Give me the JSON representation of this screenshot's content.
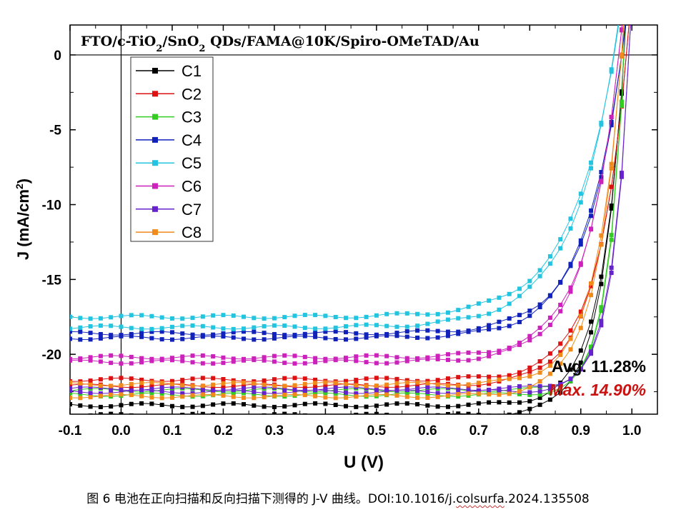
{
  "chart_data": {
    "type": "line",
    "title": "FTO/c-TiO2/SnO2 QDs/FAMA@10K/Spiro-OMeTAD/Au",
    "title_parts": [
      {
        "text": "FTO/c-TiO",
        "sub": false
      },
      {
        "text": "2",
        "sub": true
      },
      {
        "text": "/SnO",
        "sub": false
      },
      {
        "text": "2",
        "sub": true
      },
      {
        "text": " QDs/FAMA@10K/Spiro-OMeTAD/Au",
        "sub": false
      }
    ],
    "xlabel": "U (V)",
    "ylabel": "J (mA/cm2)",
    "ylabel_main": "J (mA/cm",
    "ylabel_sup": "2",
    "ylabel_end": ")",
    "xlim": [
      -0.1,
      1.05
    ],
    "ylim": [
      -24,
      2
    ],
    "xticks": [
      "-0.1",
      "0.0",
      "0.1",
      "0.2",
      "0.3",
      "0.4",
      "0.5",
      "0.6",
      "0.7",
      "0.8",
      "0.9",
      "1.0"
    ],
    "yticks": [
      "0",
      "-5",
      "-10",
      "-15",
      "-20"
    ],
    "grid": false,
    "legend_position": "top-left",
    "annotations": {
      "avg": "Avg. 11.28%",
      "max": "Max. 14.90%"
    },
    "series": [
      {
        "name": "C1",
        "color": "#000000",
        "jsc": 23.4,
        "voc": 0.985,
        "m": 0.045,
        "dj": 0.7
      },
      {
        "name": "C2",
        "color": "#dd1111",
        "jsc": 21.7,
        "voc": 0.99,
        "m": 0.058,
        "dj": 0.4
      },
      {
        "name": "C3",
        "color": "#33cc22",
        "jsc": 22.4,
        "voc": 0.985,
        "m": 0.032,
        "dj": 0.3
      },
      {
        "name": "C4",
        "color": "#1122bb",
        "jsc": 18.6,
        "voc": 0.98,
        "m": 0.072,
        "dj": 0.3
      },
      {
        "name": "C5",
        "color": "#22c4e0",
        "jsc": 17.5,
        "voc": 0.965,
        "m": 0.085,
        "dj": 0.7
      },
      {
        "name": "C6",
        "color": "#cc22bb",
        "jsc": 20.2,
        "voc": 0.975,
        "m": 0.065,
        "dj": 0.3
      },
      {
        "name": "C7",
        "color": "#6622cc",
        "jsc": 22.3,
        "voc": 0.995,
        "m": 0.034,
        "dj": 0.2
      },
      {
        "name": "C8",
        "color": "#f08a1a",
        "jsc": 22.0,
        "voc": 0.98,
        "m": 0.05,
        "dj": 0.8
      }
    ]
  },
  "caption": {
    "main": "图 6  电池在正向扫描和反向扫描下测得的 J-V 曲线。DOI:10.1016/j.",
    "underlined": "colsurfa",
    "tail": ".2024.135508"
  }
}
